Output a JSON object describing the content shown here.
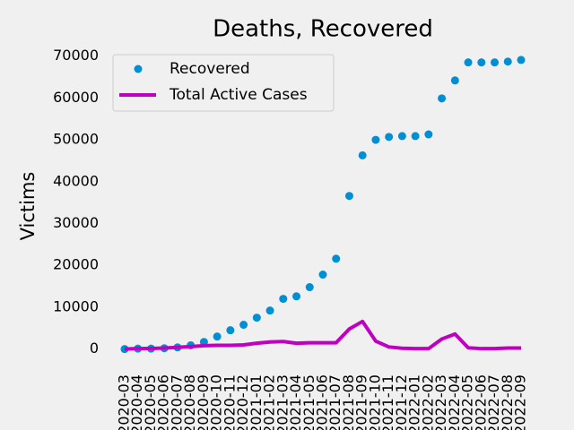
{
  "chart_data": {
    "type": "line",
    "title": "Deaths, Recovered",
    "y_label": "Victims",
    "x": [
      "2020-03",
      "2020-04",
      "2020-05",
      "2020-06",
      "2020-07",
      "2020-08",
      "2020-09",
      "2020-10",
      "2020-11",
      "2020-12",
      "2021-01",
      "2021-02",
      "2021-03",
      "2021-04",
      "2021-05",
      "2021-06",
      "2021-07",
      "2021-08",
      "2021-09",
      "2021-10",
      "2021-11",
      "2021-12",
      "2022-01",
      "2022-02",
      "2022-03",
      "2022-04",
      "2022-05",
      "2022-06",
      "2022-07",
      "2022-08",
      "2022-09"
    ],
    "series": [
      {
        "name": "Recovered",
        "color": "#008fd5",
        "style": "markers",
        "values": [
          0,
          100,
          100,
          200,
          400,
          900,
          1700,
          3000,
          4500,
          5800,
          7500,
          9200,
          12000,
          12600,
          14800,
          17800,
          21600,
          36600,
          46300,
          50000,
          50700,
          50900,
          50900,
          51300,
          59900,
          64200,
          68500,
          68500,
          68500,
          68700,
          69100
        ]
      },
      {
        "name": "Total Active Cases",
        "color": "#c000c0",
        "style": "line",
        "values": [
          0,
          100,
          150,
          250,
          400,
          600,
          800,
          900,
          900,
          1000,
          1400,
          1700,
          1800,
          1400,
          1500,
          1500,
          1500,
          4800,
          6600,
          1900,
          500,
          200,
          100,
          100,
          2400,
          3600,
          300,
          100,
          100,
          250,
          250
        ]
      }
    ],
    "ylim": [
      -3500,
      72500
    ],
    "yticks": [
      0,
      10000,
      20000,
      30000,
      40000,
      50000,
      60000,
      70000
    ],
    "grid": false,
    "legend": "upper left"
  }
}
